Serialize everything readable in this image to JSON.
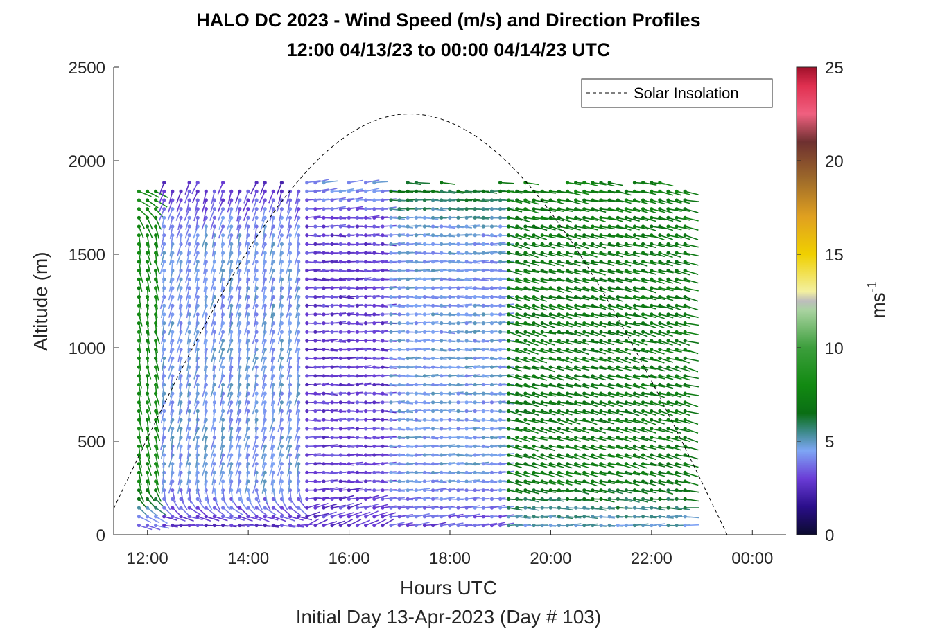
{
  "chart_data": {
    "type": "barb-profile",
    "title": "HALO DC 2023 - Wind Speed (m/s) and Direction Profiles",
    "subtitle": "12:00 04/13/23 to 00:00 04/14/23  UTC",
    "xlabel": "Hours UTC",
    "xlabel2": "Initial Day 13-Apr-2023 (Day # 103)",
    "ylabel": "Altitude (m)",
    "x_ticks": [
      "12:00",
      "14:00",
      "16:00",
      "18:00",
      "20:00",
      "22:00",
      "00:00"
    ],
    "x_tick_values": [
      12,
      14,
      16,
      18,
      20,
      22,
      24
    ],
    "xlim": [
      11.33,
      24.67
    ],
    "y_ticks": [
      "0",
      "500",
      "1000",
      "1500",
      "2000",
      "2500"
    ],
    "y_tick_values": [
      0,
      500,
      1000,
      1500,
      2000,
      2500
    ],
    "ylim": [
      0,
      2500
    ],
    "legend": {
      "label": "Solar Insolation",
      "placement": "top-right"
    },
    "solar_insolation": {
      "start_hour": 11.33,
      "peak_hour": 17.2,
      "end_hour": 23.5,
      "peak_altitude": 2250,
      "start_altitude": 140
    },
    "colorbar": {
      "label": "ms",
      "label_sup": "-1",
      "range": [
        0,
        25
      ],
      "ticks": [
        "0",
        "5",
        "10",
        "15",
        "20",
        "25"
      ],
      "tick_values": [
        0,
        5,
        10,
        15,
        20,
        25
      ],
      "stops": [
        {
          "v": 0,
          "c": "#0b0b2e"
        },
        {
          "v": 1.5,
          "c": "#2a0e8a"
        },
        {
          "v": 3,
          "c": "#6a3cd6"
        },
        {
          "v": 4.5,
          "c": "#7ea6f5"
        },
        {
          "v": 5.5,
          "c": "#3d8a8a"
        },
        {
          "v": 6.5,
          "c": "#0a6e14"
        },
        {
          "v": 8,
          "c": "#128a12"
        },
        {
          "v": 10,
          "c": "#3c9e3c"
        },
        {
          "v": 12,
          "c": "#a9d3a0"
        },
        {
          "v": 12.5,
          "c": "#bdbdbd"
        },
        {
          "v": 13,
          "c": "#f3f0a0"
        },
        {
          "v": 15,
          "c": "#f0d000"
        },
        {
          "v": 17,
          "c": "#e0a020"
        },
        {
          "v": 19,
          "c": "#9e6a2a"
        },
        {
          "v": 21,
          "c": "#6e3030"
        },
        {
          "v": 22.5,
          "c": "#f06080"
        },
        {
          "v": 24,
          "c": "#e03050"
        },
        {
          "v": 25,
          "c": "#a0102a"
        }
      ]
    },
    "profiles": {
      "start_hour": 11.83,
      "end_hour": 22.83,
      "interval_hours": 0.1667,
      "max_altitude": 1910,
      "altitude_step": 47,
      "regimes": [
        {
          "from": 11.8,
          "to": 12.3,
          "speed_low": 2.5,
          "speed_mid": 8,
          "speed_top": 8,
          "dir_low": 270,
          "dir_mid": 190,
          "dir_top": 260
        },
        {
          "from": 12.3,
          "to": 15.0,
          "speed_low": 2.5,
          "speed_mid": 4.5,
          "speed_top": 2.5,
          "dir_low": 290,
          "dir_mid": 170,
          "dir_top": 160
        },
        {
          "from": 15.0,
          "to": 16.8,
          "speed_low": 3,
          "speed_mid": 3,
          "speed_top": 4.5,
          "dir_low": 300,
          "dir_mid": 270,
          "dir_top": 280
        },
        {
          "from": 16.8,
          "to": 19.0,
          "speed_low": 3,
          "speed_mid": 4.5,
          "speed_top": 7,
          "dir_low": 280,
          "dir_mid": 270,
          "dir_top": 265
        },
        {
          "from": 19.0,
          "to": 22.9,
          "speed_low": 4.5,
          "speed_mid": 7,
          "speed_top": 7.5,
          "dir_low": 275,
          "dir_mid": 255,
          "dir_top": 260
        }
      ]
    }
  }
}
